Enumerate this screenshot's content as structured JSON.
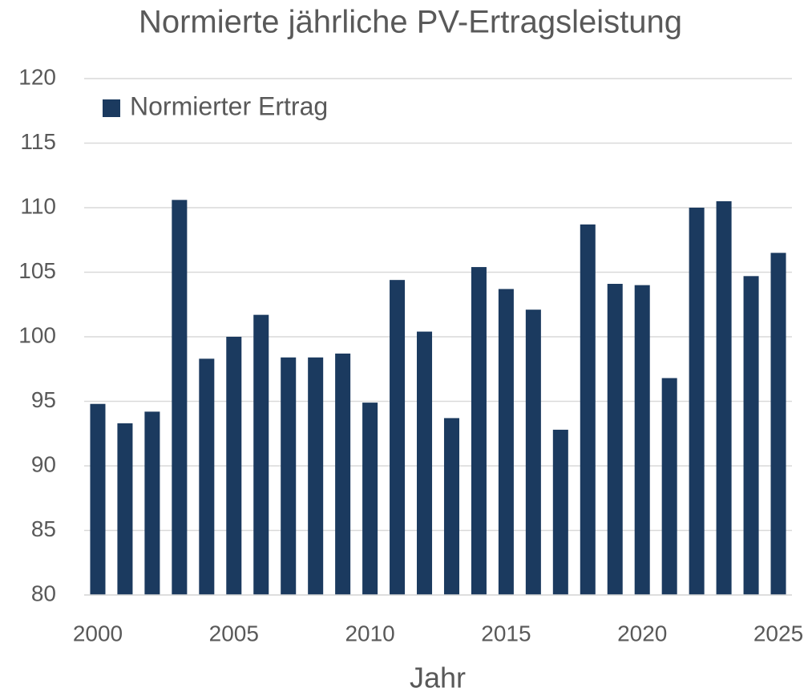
{
  "chart_data": {
    "type": "bar",
    "title": "Normierte jährliche PV-Ertragsleistung",
    "xlabel": "Jahr",
    "x": [
      2000,
      2001,
      2002,
      2003,
      2004,
      2005,
      2006,
      2007,
      2008,
      2009,
      2010,
      2011,
      2012,
      2013,
      2014,
      2015,
      2016,
      2017,
      2018,
      2019,
      2020,
      2021,
      2022,
      2023,
      2024,
      2025
    ],
    "series": [
      {
        "name": "Normierter Ertrag",
        "color": "#1b3a5f",
        "values": [
          94.8,
          93.3,
          94.2,
          110.6,
          98.3,
          100.0,
          101.7,
          98.4,
          98.4,
          98.7,
          94.9,
          104.4,
          100.4,
          93.7,
          105.4,
          103.7,
          102.1,
          92.8,
          108.7,
          104.1,
          104.0,
          96.8,
          110.0,
          110.5,
          104.7,
          106.5
        ]
      }
    ],
    "xlim": [
      1999.5,
      2025.5
    ],
    "xticks": [
      2000,
      2005,
      2010,
      2015,
      2020,
      2025
    ],
    "ylim": [
      80,
      120
    ],
    "yticks": [
      80,
      85,
      90,
      95,
      100,
      105,
      110,
      115,
      120
    ],
    "grid": true,
    "legend": "upper left"
  }
}
